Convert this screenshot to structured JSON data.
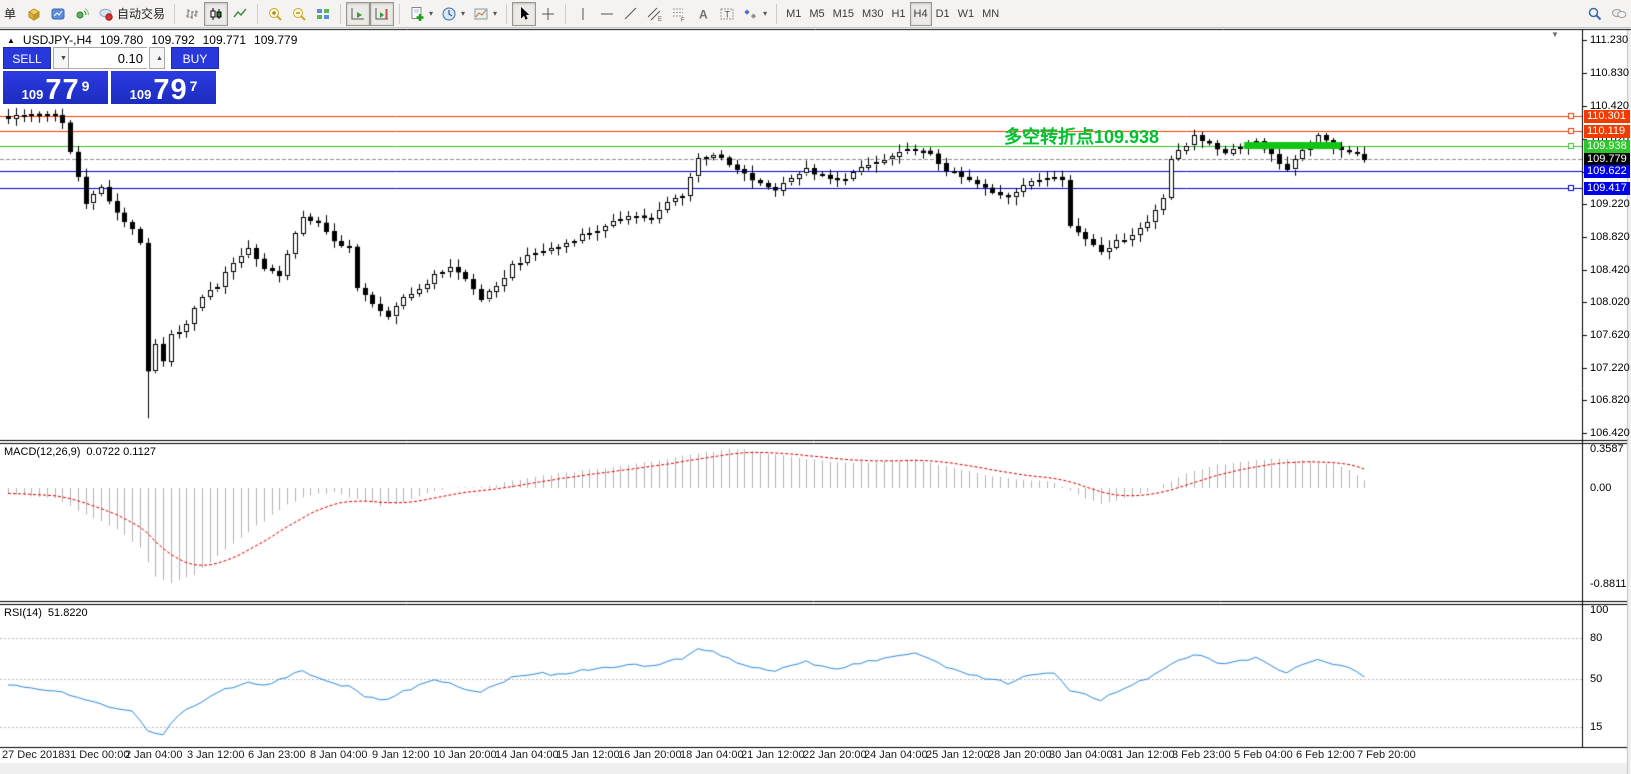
{
  "toolbar": {
    "dropdown_icon": "▾",
    "groups": [
      {
        "items": [
          {
            "name": "new-order-button",
            "label": "单"
          },
          {
            "name": "order-cube-button",
            "icon": "cube"
          },
          {
            "name": "terminal-window-button",
            "icon": "terminal"
          },
          {
            "name": "signals-button",
            "icon": "signal"
          },
          {
            "name": "autotrading-button",
            "icon": "autotrade",
            "label": "自动交易"
          }
        ]
      },
      {
        "items": [
          {
            "name": "bar-chart-button",
            "icon": "bars"
          },
          {
            "name": "candlestick-chart-button",
            "icon": "candles",
            "pressed": true
          },
          {
            "name": "line-chart-button",
            "icon": "linechart"
          }
        ]
      },
      {
        "items": [
          {
            "name": "zoom-in-button",
            "icon": "zoomin"
          },
          {
            "name": "zoom-out-button",
            "icon": "zoomout"
          },
          {
            "name": "tile-windows-button",
            "icon": "tile"
          }
        ]
      },
      {
        "items": [
          {
            "name": "auto-scroll-button",
            "icon": "autoscroll",
            "pressed": true
          },
          {
            "name": "chart-shift-button",
            "icon": "chartshift",
            "pressed": true
          }
        ]
      },
      {
        "items": [
          {
            "name": "indicators-button",
            "icon": "indicators",
            "dropdown": true
          },
          {
            "name": "periods-button",
            "icon": "clock",
            "dropdown": true
          },
          {
            "name": "templates-button",
            "icon": "template",
            "dropdown": true
          }
        ]
      },
      {
        "items": [
          {
            "name": "cursor-button",
            "icon": "cursor",
            "pressed": true
          },
          {
            "name": "crosshair-button",
            "icon": "crosshair"
          }
        ]
      },
      {
        "items": [
          {
            "name": "vertical-line-button",
            "icon": "vline"
          },
          {
            "name": "horizontal-line-button",
            "icon": "hline"
          },
          {
            "name": "trendline-button",
            "icon": "trendline"
          },
          {
            "name": "channel-button",
            "icon": "channel"
          },
          {
            "name": "fibonacci-button",
            "icon": "fibo"
          },
          {
            "name": "text-button",
            "icon": "text"
          },
          {
            "name": "text-label-button",
            "icon": "textlabel"
          },
          {
            "name": "arrows-button",
            "icon": "arrows",
            "dropdown": true
          }
        ]
      },
      {
        "items": [
          {
            "name": "tf-m1-button",
            "label": "M1",
            "tf": true
          },
          {
            "name": "tf-m5-button",
            "label": "M5",
            "tf": true
          },
          {
            "name": "tf-m15-button",
            "label": "M15",
            "tf": true
          },
          {
            "name": "tf-m30-button",
            "label": "M30",
            "tf": true
          },
          {
            "name": "tf-h1-button",
            "label": "H1",
            "tf": true
          },
          {
            "name": "tf-h4-button",
            "label": "H4",
            "tf": true,
            "pressed": true
          },
          {
            "name": "tf-d1-button",
            "label": "D1",
            "tf": true
          },
          {
            "name": "tf-w1-button",
            "label": "W1",
            "tf": true
          },
          {
            "name": "tf-mn-button",
            "label": "MN",
            "tf": true
          }
        ]
      },
      {
        "align": "right",
        "items": [
          {
            "name": "search-button",
            "icon": "search"
          },
          {
            "name": "chat-button",
            "icon": "chat"
          }
        ]
      }
    ]
  },
  "chart_header": {
    "collapse_icon": "▲",
    "symbol": "USDJPY-,H4",
    "open": "109.780",
    "high": "109.792",
    "low": "109.771",
    "close": "109.779"
  },
  "one_click": {
    "sell_label": "SELL",
    "buy_label": "BUY",
    "volume": "0.10",
    "spin_down_icon": "▼",
    "spin_up_icon": "▲",
    "sell_price": {
      "prefix": "109",
      "big": "77",
      "sup": "9"
    },
    "buy_price": {
      "prefix": "109",
      "big": "79",
      "sup": "7"
    }
  },
  "annotation": {
    "text": "多空转折点109.938",
    "color": "#00c22f"
  },
  "shift_marker_icon": "▼",
  "indicators": {
    "macd": {
      "label": "MACD(12,26,9)",
      "values_text": "0.0722 0.1127"
    },
    "rsi": {
      "label": "RSI(14)",
      "value_text": "51.8220"
    }
  },
  "price_axis_ticks": [
    "111.230",
    "110.830",
    "110.420",
    "110.020",
    "109.620",
    "109.220",
    "108.820",
    "108.420",
    "108.020",
    "107.620",
    "107.220",
    "106.820",
    "106.420"
  ],
  "time_axis_labels": [
    "27 Dec 2018",
    "31 Dec 00:00",
    "2 Jan 04:00",
    "3 Jan 12:00",
    "6 Jan 23:00",
    "8 Jan 04:00",
    "9 Jan 12:00",
    "10 Jan 20:00",
    "14 Jan 04:00",
    "15 Jan 12:00",
    "16 Jan 20:00",
    "18 Jan 04:00",
    "21 Jan 12:00",
    "22 Jan 20:00",
    "24 Jan 04:00",
    "25 Jan 12:00",
    "28 Jan 20:00",
    "30 Jan 04:00",
    "31 Jan 12:00",
    "3 Feb 23:00",
    "5 Feb 04:00",
    "6 Feb 12:00",
    "7 Feb 20:00"
  ],
  "price_lines": [
    {
      "label": "110.301",
      "value": 110.301,
      "color": "#f23b00",
      "handle": true,
      "style": "solid"
    },
    {
      "label": "110.119",
      "value": 110.119,
      "color": "#f23b00",
      "handle": true,
      "style": "solid"
    },
    {
      "label": "109.938",
      "value": 109.938,
      "color": "#2ec52e",
      "handle": true,
      "style": "solid"
    },
    {
      "label": "109.779",
      "value": 109.779,
      "color": "#000000",
      "line_color": "#909090",
      "handle": false,
      "style": "dashed",
      "current": true
    },
    {
      "label": "109.622",
      "value": 109.622,
      "color": "#0000e8",
      "handle": false,
      "style": "solid"
    },
    {
      "label": "109.417",
      "value": 109.417,
      "color": "#0000e8",
      "handle": true,
      "style": "solid"
    }
  ],
  "green_bar": {
    "price": 109.938,
    "from_bar": 159.5,
    "to_bar": 172,
    "color": "#12c512",
    "thickness": 7
  },
  "chart_data": {
    "type": "candlestick",
    "symbol": "USDJPY-",
    "timeframe": "H4",
    "title": "USDJPY-,H4 109.780 109.792 109.771 109.779",
    "bars": 176,
    "price_range": {
      "min": 106.42,
      "max": 111.23
    },
    "grid": false,
    "close_anchors": [
      [
        0,
        110.28
      ],
      [
        3,
        110.33
      ],
      [
        6,
        110.3
      ],
      [
        7,
        110.22
      ],
      [
        8,
        109.86
      ],
      [
        10,
        109.25
      ],
      [
        12,
        109.42
      ],
      [
        14,
        109.1
      ],
      [
        16,
        108.92
      ],
      [
        17,
        108.76
      ],
      [
        18,
        107.15
      ],
      [
        19,
        107.5
      ],
      [
        20,
        107.28
      ],
      [
        21,
        107.62
      ],
      [
        23,
        107.75
      ],
      [
        25,
        108.1
      ],
      [
        27,
        108.22
      ],
      [
        29,
        108.52
      ],
      [
        31,
        108.68
      ],
      [
        33,
        108.44
      ],
      [
        35,
        108.36
      ],
      [
        38,
        109.08
      ],
      [
        40,
        108.98
      ],
      [
        42,
        108.76
      ],
      [
        44,
        108.7
      ],
      [
        45,
        108.18
      ],
      [
        47,
        108.02
      ],
      [
        49,
        107.82
      ],
      [
        51,
        108.08
      ],
      [
        53,
        108.18
      ],
      [
        55,
        108.34
      ],
      [
        57,
        108.46
      ],
      [
        59,
        108.3
      ],
      [
        61,
        108.06
      ],
      [
        63,
        108.2
      ],
      [
        65,
        108.48
      ],
      [
        68,
        108.62
      ],
      [
        71,
        108.7
      ],
      [
        74,
        108.84
      ],
      [
        77,
        108.94
      ],
      [
        80,
        109.1
      ],
      [
        83,
        109.04
      ],
      [
        85,
        109.24
      ],
      [
        87,
        109.34
      ],
      [
        89,
        109.78
      ],
      [
        91,
        109.84
      ],
      [
        93,
        109.7
      ],
      [
        95,
        109.58
      ],
      [
        97,
        109.46
      ],
      [
        99,
        109.4
      ],
      [
        101,
        109.56
      ],
      [
        103,
        109.64
      ],
      [
        105,
        109.56
      ],
      [
        107,
        109.5
      ],
      [
        109,
        109.6
      ],
      [
        111,
        109.7
      ],
      [
        113,
        109.76
      ],
      [
        115,
        109.84
      ],
      [
        117,
        109.9
      ],
      [
        119,
        109.82
      ],
      [
        121,
        109.64
      ],
      [
        123,
        109.55
      ],
      [
        125,
        109.46
      ],
      [
        127,
        109.36
      ],
      [
        129,
        109.32
      ],
      [
        131,
        109.46
      ],
      [
        133,
        109.52
      ],
      [
        135,
        109.58
      ],
      [
        136,
        109.54
      ],
      [
        137,
        108.95
      ],
      [
        139,
        108.8
      ],
      [
        141,
        108.66
      ],
      [
        143,
        108.76
      ],
      [
        145,
        108.86
      ],
      [
        147,
        109.0
      ],
      [
        149,
        109.32
      ],
      [
        150,
        109.78
      ],
      [
        152,
        109.94
      ],
      [
        153,
        110.08
      ],
      [
        155,
        109.94
      ],
      [
        157,
        109.86
      ],
      [
        159,
        109.94
      ],
      [
        161,
        110.0
      ],
      [
        163,
        109.82
      ],
      [
        165,
        109.64
      ],
      [
        167,
        109.86
      ],
      [
        169,
        110.04
      ],
      [
        171,
        109.94
      ],
      [
        173,
        109.86
      ],
      [
        175,
        109.78
      ]
    ],
    "crash_bar": {
      "index": 18,
      "low": 106.6
    },
    "macd": {
      "params": [
        12,
        26,
        9
      ],
      "main": 0.0722,
      "signal": 0.1127,
      "scale": [
        {
          "text": "0.3587",
          "value": 0.3587
        },
        {
          "text": "0.00",
          "value": 0
        },
        {
          "text": "-0.8811",
          "value": -0.8811
        }
      ],
      "histogram_anchors": [
        [
          0,
          -0.05
        ],
        [
          6,
          -0.1
        ],
        [
          10,
          -0.24
        ],
        [
          14,
          -0.38
        ],
        [
          17,
          -0.55
        ],
        [
          19,
          -0.82
        ],
        [
          21,
          -0.88
        ],
        [
          24,
          -0.8
        ],
        [
          27,
          -0.62
        ],
        [
          30,
          -0.45
        ],
        [
          33,
          -0.3
        ],
        [
          36,
          -0.15
        ],
        [
          39,
          -0.06
        ],
        [
          42,
          -0.04
        ],
        [
          45,
          -0.1
        ],
        [
          48,
          -0.16
        ],
        [
          51,
          -0.13
        ],
        [
          54,
          -0.05
        ],
        [
          57,
          0.01
        ],
        [
          60,
          0.0
        ],
        [
          63,
          0.03
        ],
        [
          66,
          0.08
        ],
        [
          70,
          0.12
        ],
        [
          74,
          0.16
        ],
        [
          78,
          0.19
        ],
        [
          82,
          0.23
        ],
        [
          86,
          0.28
        ],
        [
          90,
          0.33
        ],
        [
          93,
          0.355
        ],
        [
          96,
          0.345
        ],
        [
          99,
          0.31
        ],
        [
          102,
          0.28
        ],
        [
          105,
          0.25
        ],
        [
          108,
          0.235
        ],
        [
          111,
          0.24
        ],
        [
          114,
          0.25
        ],
        [
          117,
          0.26
        ],
        [
          120,
          0.22
        ],
        [
          123,
          0.17
        ],
        [
          126,
          0.12
        ],
        [
          129,
          0.09
        ],
        [
          132,
          0.075
        ],
        [
          135,
          0.05
        ],
        [
          137,
          -0.02
        ],
        [
          139,
          -0.1
        ],
        [
          141,
          -0.14
        ],
        [
          143,
          -0.12
        ],
        [
          145,
          -0.08
        ],
        [
          147,
          -0.03
        ],
        [
          149,
          0.03
        ],
        [
          151,
          0.1
        ],
        [
          153,
          0.16
        ],
        [
          155,
          0.2
        ],
        [
          158,
          0.23
        ],
        [
          161,
          0.26
        ],
        [
          164,
          0.265
        ],
        [
          167,
          0.25
        ],
        [
          170,
          0.23
        ],
        [
          172,
          0.2
        ],
        [
          174,
          0.12
        ],
        [
          175,
          0.072
        ]
      ]
    },
    "rsi": {
      "period": 14,
      "value": 51.822,
      "scale": [
        {
          "text": "100",
          "value": 100
        },
        {
          "text": "80",
          "value": 80
        },
        {
          "text": "50",
          "value": 50
        },
        {
          "text": "15",
          "value": 15
        }
      ],
      "levels": [
        80,
        50,
        15
      ],
      "line_anchors": [
        [
          0,
          45
        ],
        [
          4,
          43
        ],
        [
          7,
          40
        ],
        [
          10,
          34
        ],
        [
          13,
          30
        ],
        [
          16,
          26
        ],
        [
          18,
          13
        ],
        [
          20,
          9
        ],
        [
          22,
          24
        ],
        [
          25,
          34
        ],
        [
          28,
          42
        ],
        [
          31,
          48
        ],
        [
          33,
          45
        ],
        [
          36,
          52
        ],
        [
          38,
          55
        ],
        [
          40,
          51
        ],
        [
          42,
          47
        ],
        [
          44,
          44
        ],
        [
          46,
          37
        ],
        [
          48,
          34
        ],
        [
          50,
          38
        ],
        [
          52,
          43
        ],
        [
          55,
          50
        ],
        [
          57,
          47
        ],
        [
          59,
          43
        ],
        [
          61,
          40
        ],
        [
          63,
          46
        ],
        [
          65,
          51
        ],
        [
          68,
          54
        ],
        [
          71,
          53
        ],
        [
          74,
          56
        ],
        [
          77,
          58
        ],
        [
          80,
          61
        ],
        [
          83,
          59
        ],
        [
          85,
          63
        ],
        [
          87,
          65
        ],
        [
          89,
          71
        ],
        [
          91,
          69
        ],
        [
          93,
          65
        ],
        [
          95,
          60
        ],
        [
          97,
          57
        ],
        [
          99,
          55
        ],
        [
          101,
          60
        ],
        [
          103,
          62
        ],
        [
          105,
          59
        ],
        [
          107,
          57
        ],
        [
          109,
          60
        ],
        [
          111,
          63
        ],
        [
          113,
          65
        ],
        [
          115,
          67
        ],
        [
          117,
          69
        ],
        [
          119,
          64
        ],
        [
          121,
          58
        ],
        [
          123,
          55
        ],
        [
          125,
          52
        ],
        [
          127,
          49
        ],
        [
          129,
          47
        ],
        [
          131,
          52
        ],
        [
          133,
          54
        ],
        [
          135,
          55
        ],
        [
          137,
          42
        ],
        [
          139,
          38
        ],
        [
          141,
          35
        ],
        [
          143,
          41
        ],
        [
          145,
          45
        ],
        [
          147,
          50
        ],
        [
          149,
          56
        ],
        [
          151,
          64
        ],
        [
          153,
          68
        ],
        [
          155,
          64
        ],
        [
          157,
          60
        ],
        [
          159,
          63
        ],
        [
          161,
          66
        ],
        [
          163,
          60
        ],
        [
          165,
          54
        ],
        [
          167,
          60
        ],
        [
          169,
          64
        ],
        [
          171,
          61
        ],
        [
          173,
          58
        ],
        [
          175,
          51.8
        ]
      ]
    }
  }
}
